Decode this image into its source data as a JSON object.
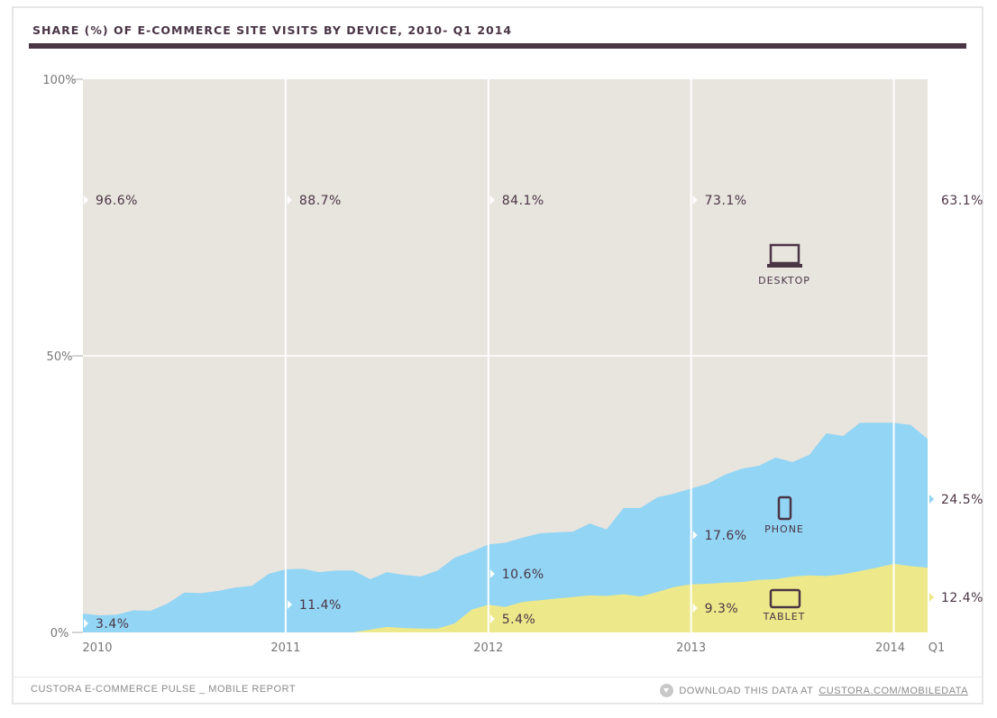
{
  "title": "SHARE (%) OF E-COMMERCE SITE VISITS BY DEVICE, 2010- Q1 2014",
  "footer": {
    "left": "CUSTORA E-COMMERCE PULSE _ MOBILE REPORT",
    "right_prefix": "DOWNLOAD THIS DATA AT",
    "right_link": "CUSTORA.COM/MOBILEDATA",
    "icon": "download-icon"
  },
  "chart_data": {
    "type": "area",
    "stacked": true,
    "title": "SHARE (%) OF E-COMMERCE SITE VISITS BY DEVICE, 2010- Q1 2014",
    "x_start": "2010-01",
    "x_end": "2014-03",
    "x_step": "month",
    "x_tick_labels": [
      "2010",
      "2011",
      "2012",
      "2013",
      "2014",
      "Q1"
    ],
    "y_tick_labels": [
      "100%",
      "50%",
      "0%"
    ],
    "ylim": [
      0,
      100
    ],
    "colors": {
      "desktop": "#e8e4de",
      "phone": "#92d5f4",
      "tablet": "#ede98a",
      "text": "#4a3545",
      "grid": "#ffffff"
    },
    "series": [
      {
        "name": "TABLET",
        "icon": "tablet-icon",
        "values": [
          0,
          0,
          0,
          0,
          0,
          0,
          0,
          0,
          0,
          0,
          0,
          0,
          0,
          0,
          0,
          0,
          0,
          0.5,
          1.0,
          0.8,
          0.7,
          0.7,
          1.6,
          4.1,
          5.0,
          4.6,
          5.5,
          5.8,
          6.1,
          6.4,
          6.7,
          6.6,
          6.9,
          6.5,
          7.3,
          8.2,
          8.7,
          8.8,
          9.0,
          9.1,
          9.5,
          9.6,
          10.1,
          10.3,
          10.2,
          10.5,
          11.1,
          11.7,
          12.4,
          12.0,
          11.7
        ]
      },
      {
        "name": "PHONE",
        "icon": "phone-icon",
        "values_cumulative_top": [
          3.4,
          3.1,
          3.2,
          4.0,
          3.9,
          5.2,
          7.2,
          7.1,
          7.5,
          8.1,
          8.4,
          10.6,
          11.4,
          11.5,
          10.9,
          11.2,
          11.2,
          9.6,
          10.9,
          10.4,
          10.1,
          11.2,
          13.5,
          14.6,
          15.9,
          16.2,
          17.1,
          17.9,
          18.1,
          18.2,
          19.7,
          18.6,
          22.5,
          22.5,
          24.4,
          25.1,
          26.0,
          26.9,
          28.5,
          29.6,
          30.1,
          31.6,
          30.8,
          32.1,
          36.0,
          35.5,
          37.9,
          37.9,
          37.9,
          37.5,
          35.0
        ]
      },
      {
        "name": "DESKTOP",
        "icon": "laptop-icon",
        "values": "remainder to 100%"
      }
    ],
    "annotations": {
      "desktop": [
        "96.6%",
        "88.7%",
        "84.1%",
        "73.1%",
        "63.1%"
      ],
      "phone": [
        "3.4%",
        "11.4%",
        "10.6%",
        "17.6%",
        "24.5%"
      ],
      "tablet": [
        "5.4%",
        "9.3%",
        "12.4%"
      ]
    }
  }
}
